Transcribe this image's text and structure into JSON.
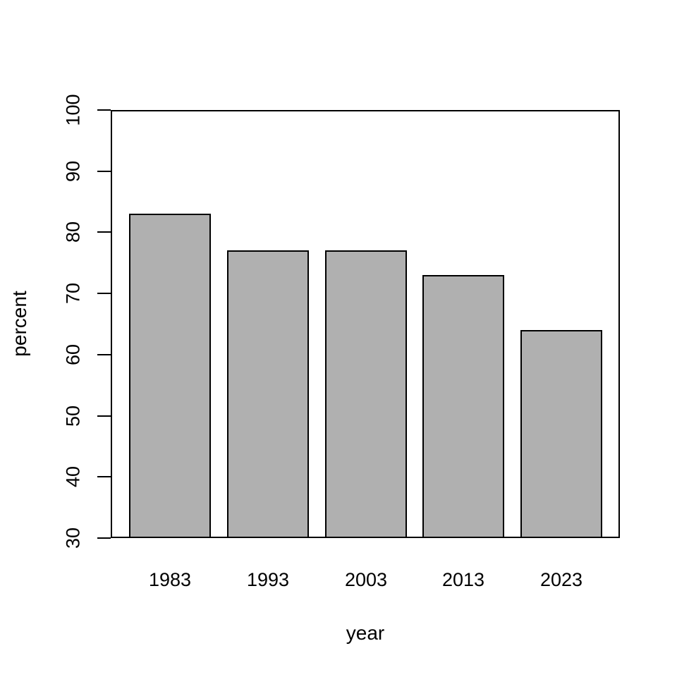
{
  "figure": {
    "background_color": "#ffffff",
    "axis_color": "#000000"
  },
  "chart_data": {
    "type": "bar",
    "title": "",
    "categories": [
      "1983",
      "1993",
      "2003",
      "2013",
      "2023"
    ],
    "values": [
      83,
      77,
      77,
      73,
      64
    ],
    "xlabel": "year",
    "ylabel": "percent",
    "ylim": [
      30,
      100
    ],
    "yticks": [
      30,
      40,
      50,
      60,
      70,
      80,
      90,
      100
    ],
    "grid": "off",
    "legend": "none",
    "bar_fill_color": "#b0b0b0",
    "bar_border_color": "#000000"
  }
}
